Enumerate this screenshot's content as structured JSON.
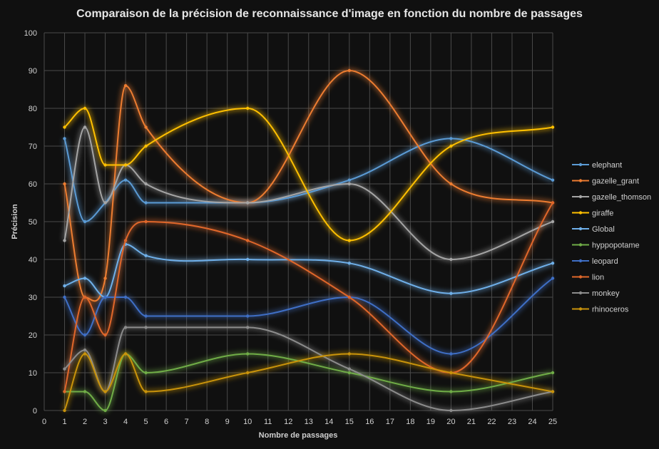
{
  "chart_data": {
    "type": "line",
    "title": "Comparaison de la précision de reconnaissance d'image en fonction du nombre de passages",
    "xlabel": "Nombre de passages",
    "ylabel": "Précision",
    "xlim": [
      0,
      25
    ],
    "ylim": [
      0,
      100
    ],
    "x_ticks": [
      0,
      1,
      2,
      3,
      4,
      5,
      6,
      7,
      8,
      9,
      10,
      11,
      12,
      13,
      14,
      15,
      16,
      17,
      18,
      19,
      20,
      21,
      22,
      23,
      24,
      25
    ],
    "y_ticks": [
      0,
      10,
      20,
      30,
      40,
      50,
      60,
      70,
      80,
      90,
      100
    ],
    "grid": true,
    "legend_position": "right",
    "x": [
      1,
      2,
      3,
      4,
      5,
      10,
      15,
      20,
      25
    ],
    "series": [
      {
        "name": "elephant",
        "color": "#5b9bd5",
        "values": [
          72,
          50,
          55,
          61,
          55,
          55,
          61,
          72,
          61
        ]
      },
      {
        "name": "gazelle_grant",
        "color": "#ed7d31",
        "values": [
          60,
          30,
          35,
          86,
          75,
          55,
          90,
          60,
          55
        ]
      },
      {
        "name": "gazelle_thomson",
        "color": "#a5a5a5",
        "values": [
          45,
          75,
          55,
          65,
          60,
          55,
          60,
          40,
          50
        ]
      },
      {
        "name": "giraffe",
        "color": "#ffc000",
        "values": [
          75,
          80,
          65,
          65,
          70,
          80,
          45,
          70,
          75
        ]
      },
      {
        "name": "Global",
        "color": "#6fb0ea",
        "values": [
          33,
          35,
          30,
          44,
          41,
          40,
          39,
          31,
          39
        ]
      },
      {
        "name": "hyppopotame",
        "color": "#70ad47",
        "values": [
          5,
          5,
          0,
          15,
          10,
          15,
          10,
          5,
          10
        ]
      },
      {
        "name": "leopard",
        "color": "#3f6fc6",
        "values": [
          30,
          20,
          30,
          30,
          25,
          25,
          30,
          15,
          35
        ]
      },
      {
        "name": "lion",
        "color": "#e0672a",
        "values": [
          5,
          30,
          20,
          45,
          50,
          45,
          30,
          10,
          55
        ]
      },
      {
        "name": "monkey",
        "color": "#8c8c8c",
        "values": [
          11,
          16,
          5,
          22,
          22,
          22,
          11,
          0,
          5
        ]
      },
      {
        "name": "rhinoceros",
        "color": "#c9930b",
        "values": [
          0,
          15,
          5,
          15,
          5,
          10,
          15,
          10,
          5
        ]
      }
    ]
  }
}
